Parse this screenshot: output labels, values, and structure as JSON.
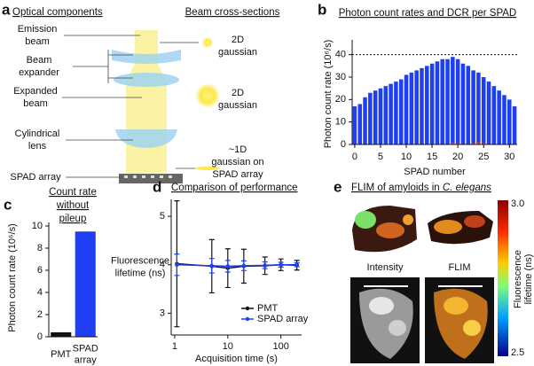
{
  "panel_labels": [
    "a",
    "b",
    "c",
    "d",
    "e"
  ],
  "diagram": {
    "headers": [
      "Optical components",
      "Beam cross-sections"
    ],
    "components": [
      "Emission beam",
      "Beam expander",
      "Expanded beam",
      "Cylindrical lens",
      "SPAD array"
    ],
    "cross_sections": [
      "2D gaussian",
      "2D gaussian",
      "~1D gaussian on SPAD array"
    ]
  },
  "chart_data": [
    {
      "type": "bar",
      "title": "Photon count rates and DCR per SPAD",
      "x_label": "SPAD number",
      "y_label": "Photon count rate (10⁶/s)",
      "x": [
        0,
        1,
        2,
        3,
        4,
        5,
        6,
        7,
        8,
        9,
        10,
        11,
        12,
        13,
        14,
        15,
        16,
        17,
        18,
        19,
        20,
        21,
        22,
        23,
        24,
        25,
        26,
        27,
        28,
        29,
        30,
        31
      ],
      "series": [
        {
          "color": "#1f3ff5",
          "values": [
            17,
            18,
            21,
            23,
            24,
            25,
            26,
            27,
            28,
            29,
            31,
            32,
            33,
            34,
            35,
            36,
            37,
            38,
            38,
            39,
            38,
            36,
            35,
            33,
            32,
            30,
            28,
            26,
            24,
            22,
            20,
            17
          ]
        },
        {
          "color": "#e8322a",
          "values": [
            0,
            0,
            0,
            0,
            0,
            0,
            0,
            0,
            0,
            0,
            0,
            0,
            0,
            0,
            0,
            0,
            0,
            0,
            0,
            0.8,
            0.5,
            0,
            0,
            0.6,
            1,
            0.5,
            0,
            0,
            0,
            0,
            0,
            0
          ]
        }
      ],
      "xlim": [
        -0.5,
        31.5
      ],
      "xticks": [
        0,
        5,
        10,
        15,
        20,
        25,
        30
      ],
      "ylim": [
        0,
        45
      ],
      "yticks": [
        0,
        10,
        20,
        30,
        40
      ],
      "hline": 40
    },
    {
      "type": "bar",
      "title": "Count rate without pileup",
      "y_label": "Photon count rate (10⁶/s)",
      "categories": [
        "PMT",
        "SPAD array"
      ],
      "values": [
        0.4,
        9.5
      ],
      "colors": [
        "#111111",
        "#1f3ff5"
      ],
      "ylim": [
        0,
        10
      ],
      "yticks": [
        0,
        2,
        4,
        6,
        8,
        10
      ]
    },
    {
      "type": "line",
      "title": "Comparison of performance",
      "x_label": "Acquisition time (s)",
      "y_label": "Fluorescence lifetime (ns)",
      "x": [
        1.1,
        5,
        10,
        20,
        50,
        100,
        200
      ],
      "log_x": true,
      "series": [
        {
          "name": "PMT",
          "color": "#111111",
          "values": [
            4.02,
            3.97,
            3.93,
            3.97,
            3.98,
            4.0,
            3.99
          ],
          "errors": [
            1.3,
            0.55,
            0.4,
            0.35,
            0.18,
            0.12,
            0.1
          ]
        },
        {
          "name": "SPAD array",
          "color": "#1f3ff5",
          "values": [
            4.0,
            3.98,
            3.97,
            3.98,
            3.99,
            4.0,
            4.0
          ],
          "errors": [
            0.22,
            0.15,
            0.12,
            0.1,
            0.07,
            0.05,
            0.04
          ]
        }
      ],
      "xlim": [
        0.86,
        245
      ],
      "xticks": [
        1,
        10,
        100
      ],
      "ylim": [
        2.55,
        5.35
      ],
      "yticks": [
        3,
        4,
        5
      ],
      "legend": "lower right"
    }
  ],
  "image_panel": {
    "title": "FLIM of amyloids in C. elegans",
    "labels": [
      "Intensity",
      "FLIM"
    ],
    "colorbar_ticks": [
      "3.0",
      "2.5"
    ],
    "colorbar_label": "Fluorescence lifetime (ns)"
  }
}
